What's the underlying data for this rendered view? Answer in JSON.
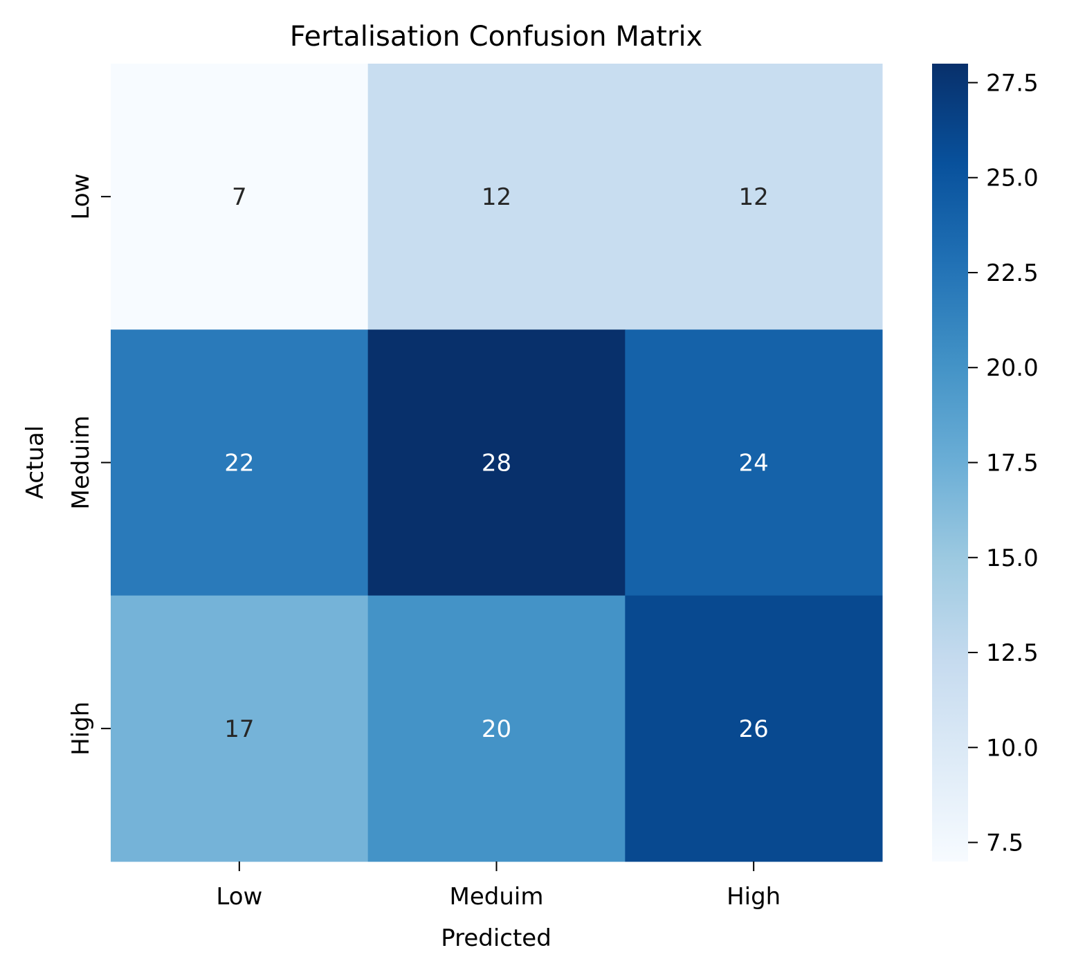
{
  "chart_data": {
    "type": "heatmap",
    "title": "Fertalisation Confusion Matrix",
    "xlabel": "Predicted",
    "ylabel": "Actual",
    "x_categories": [
      "Low",
      "Meduim",
      "High"
    ],
    "y_categories": [
      "Low",
      "Meduim",
      "High"
    ],
    "values": [
      [
        7,
        12,
        12
      ],
      [
        22,
        28,
        24
      ],
      [
        17,
        20,
        26
      ]
    ],
    "colormap": "Blues",
    "colorbar": {
      "min": 7,
      "max": 28,
      "ticks": [
        7.5,
        10.0,
        12.5,
        15.0,
        17.5,
        20.0,
        22.5,
        25.0,
        27.5
      ],
      "tick_labels": [
        "7.5",
        "10.0",
        "12.5",
        "15.0",
        "17.5",
        "20.0",
        "22.5",
        "25.0",
        "27.5"
      ]
    },
    "annotation_colors": {
      "dark_text": "#262626",
      "light_text": "#ffffff"
    },
    "grid": false
  }
}
